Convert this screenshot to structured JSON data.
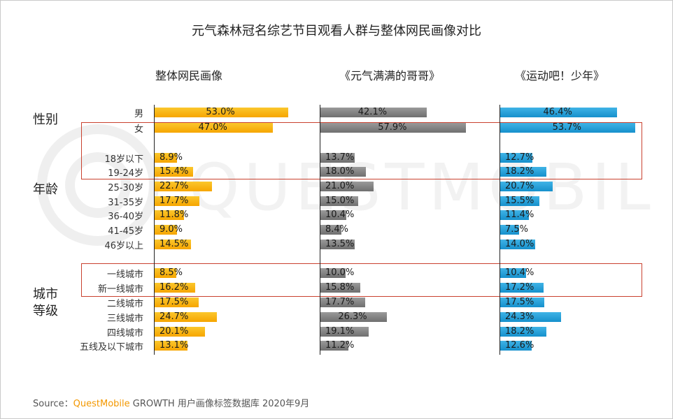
{
  "title": "元气森林冠名综艺节目观看人群与整体网民画像对比",
  "watermark": "QUESTMOBILE",
  "columns": [
    {
      "key": "overall",
      "label": "整体网民画像"
    },
    {
      "key": "show1",
      "label": "《元气满满的哥哥》"
    },
    {
      "key": "show2",
      "label": "《运动吧！少年》"
    }
  ],
  "groups": [
    {
      "label": "性别"
    },
    {
      "label": "年龄"
    },
    {
      "label": "城市\n等级"
    }
  ],
  "chart_data": {
    "type": "bar",
    "title": "元气森林冠名综艺节目观看人群与整体网民画像对比",
    "orientation": "horizontal",
    "categories": [
      "男",
      "女",
      "18岁以下",
      "19-24岁",
      "25-30岁",
      "31-35岁",
      "36-40岁",
      "41-45岁",
      "46岁以上",
      "一线城市",
      "新一线城市",
      "二线城市",
      "三线城市",
      "四线城市",
      "五线及以下城市"
    ],
    "series": [
      {
        "name": "整体网民画像",
        "color": "#f6a500",
        "values": [
          53.0,
          47.0,
          8.9,
          15.4,
          22.7,
          17.7,
          11.8,
          9.0,
          14.5,
          8.5,
          16.2,
          17.5,
          24.7,
          20.1,
          13.1
        ]
      },
      {
        "name": "《元气满满的哥哥》",
        "color": "#7f7f7f",
        "values": [
          42.1,
          57.9,
          13.7,
          18.0,
          21.0,
          15.0,
          10.4,
          8.4,
          13.5,
          10.0,
          15.8,
          17.7,
          26.3,
          19.1,
          11.2
        ]
      },
      {
        "name": "《运动吧！少年》",
        "color": "#1a96d4",
        "values": [
          46.4,
          53.7,
          12.7,
          18.2,
          20.7,
          15.5,
          11.4,
          7.5,
          14.0,
          10.4,
          17.2,
          17.5,
          24.3,
          18.2,
          12.6
        ]
      }
    ],
    "value_format": "percent_1dp",
    "highlighted_categories": [
      "女",
      "18岁以下",
      "19-24岁",
      "一线城市",
      "新一线城市"
    ]
  },
  "source": {
    "prefix": "Source：",
    "brand": "QuestMobile",
    "rest": " GROWTH 用户画像标签数据库 2020年9月"
  }
}
